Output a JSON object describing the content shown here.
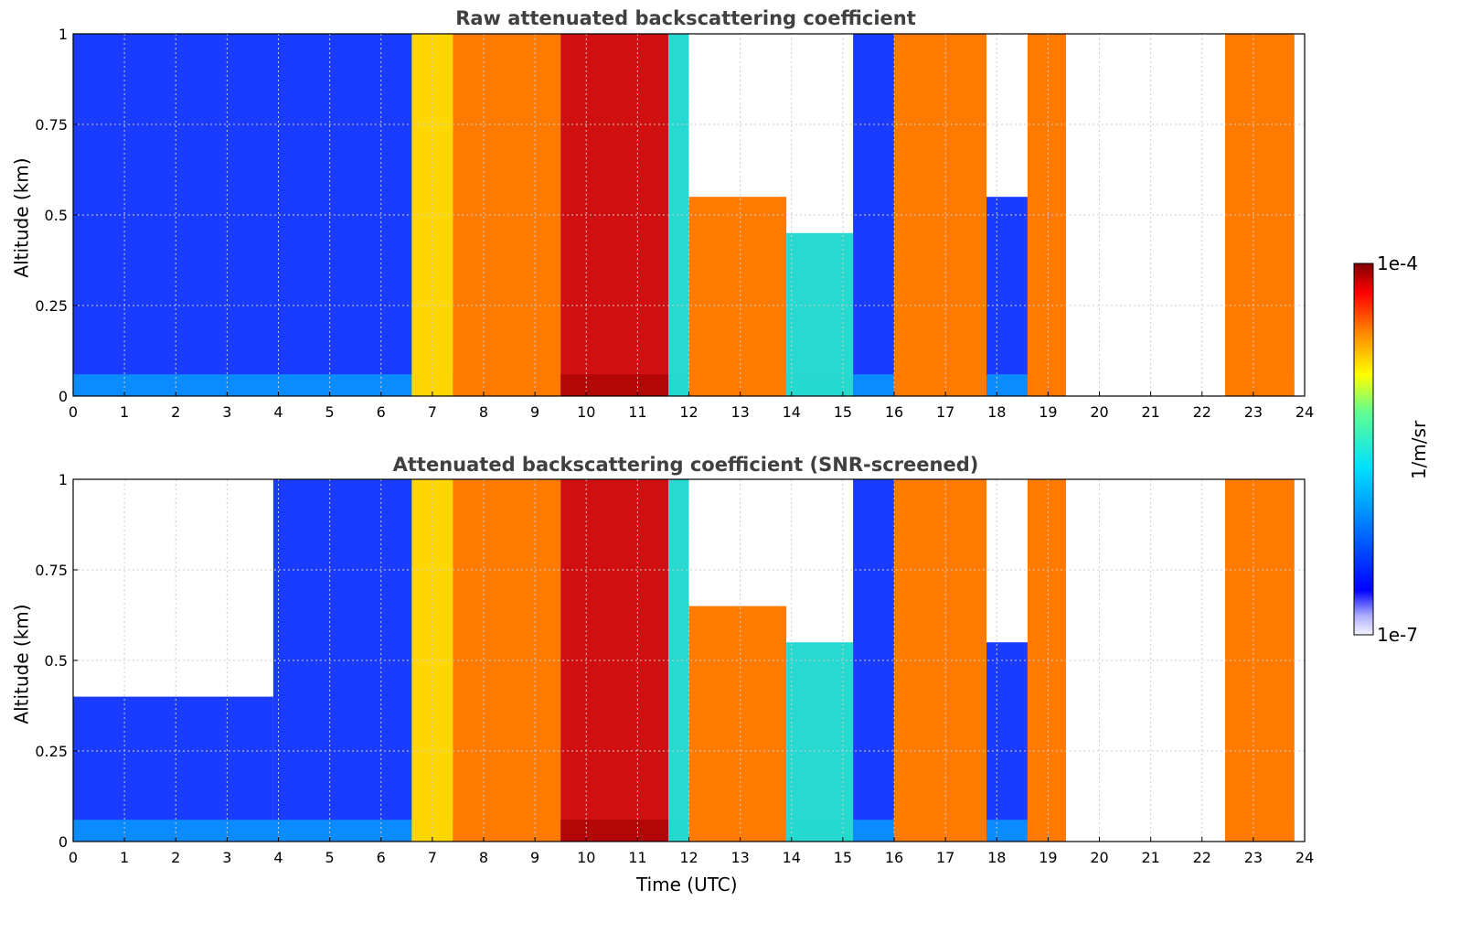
{
  "chart_data": [
    {
      "type": "heatmap",
      "title": "Raw attenuated backscattering coefficient",
      "xlabel": "",
      "ylabel": "Altitude (km)",
      "xlim": [
        0,
        24
      ],
      "ylim": [
        0,
        1
      ],
      "xticks": [
        "0",
        "1",
        "2",
        "3",
        "4",
        "5",
        "6",
        "7",
        "8",
        "9",
        "10",
        "11",
        "12",
        "13",
        "14",
        "15",
        "16",
        "17",
        "18",
        "19",
        "20",
        "21",
        "22",
        "23",
        "24"
      ],
      "yticks": [
        "0",
        "0.25",
        "0.5",
        "0.75",
        "1"
      ],
      "grid": true,
      "segments": [
        {
          "start": 0.0,
          "end": 6.6,
          "level": "low",
          "top_km": 1.0
        },
        {
          "start": 6.6,
          "end": 7.4,
          "level": "medium-high",
          "top_km": 1.0
        },
        {
          "start": 7.4,
          "end": 9.5,
          "level": "high",
          "top_km": 1.0
        },
        {
          "start": 9.5,
          "end": 11.6,
          "level": "very-high",
          "top_km": 1.0
        },
        {
          "start": 11.6,
          "end": 12.0,
          "level": "medium",
          "top_km": 1.0
        },
        {
          "start": 12.0,
          "end": 13.9,
          "level": "high",
          "top_km": 0.55
        },
        {
          "start": 13.9,
          "end": 15.2,
          "level": "medium",
          "top_km": 0.45
        },
        {
          "start": 15.2,
          "end": 16.0,
          "level": "low",
          "top_km": 1.0
        },
        {
          "start": 16.0,
          "end": 17.0,
          "level": "high",
          "top_km": 1.0
        },
        {
          "start": 17.0,
          "end": 17.8,
          "level": "high",
          "top_km": 1.0
        },
        {
          "start": 17.8,
          "end": 18.6,
          "level": "low",
          "top_km": 0.55
        },
        {
          "start": 18.6,
          "end": 19.35,
          "level": "high",
          "top_km": 1.0
        },
        {
          "start": 22.45,
          "end": 23.8,
          "level": "high",
          "top_km": 1.0
        }
      ]
    },
    {
      "type": "heatmap",
      "title": "Attenuated backscattering coefficient (SNR-screened)",
      "xlabel": "Time (UTC)",
      "ylabel": "Altitude (km)",
      "xlim": [
        0,
        24
      ],
      "ylim": [
        0,
        1
      ],
      "xticks": [
        "0",
        "1",
        "2",
        "3",
        "4",
        "5",
        "6",
        "7",
        "8",
        "9",
        "10",
        "11",
        "12",
        "13",
        "14",
        "15",
        "16",
        "17",
        "18",
        "19",
        "20",
        "21",
        "22",
        "23",
        "24"
      ],
      "yticks": [
        "0",
        "0.25",
        "0.5",
        "0.75",
        "1"
      ],
      "grid": true,
      "segments": [
        {
          "start": 0.0,
          "end": 3.9,
          "level": "low",
          "top_km": 0.4
        },
        {
          "start": 3.9,
          "end": 6.6,
          "level": "low",
          "top_km": 1.0
        },
        {
          "start": 6.6,
          "end": 7.4,
          "level": "medium-high",
          "top_km": 1.0
        },
        {
          "start": 7.4,
          "end": 9.5,
          "level": "high",
          "top_km": 1.0
        },
        {
          "start": 9.5,
          "end": 11.6,
          "level": "very-high",
          "top_km": 1.0
        },
        {
          "start": 11.6,
          "end": 12.0,
          "level": "medium",
          "top_km": 1.0
        },
        {
          "start": 12.0,
          "end": 13.9,
          "level": "high",
          "top_km": 0.65
        },
        {
          "start": 13.9,
          "end": 15.2,
          "level": "medium",
          "top_km": 0.55
        },
        {
          "start": 15.2,
          "end": 16.0,
          "level": "low",
          "top_km": 1.0
        },
        {
          "start": 16.0,
          "end": 17.0,
          "level": "high",
          "top_km": 1.0
        },
        {
          "start": 17.0,
          "end": 17.8,
          "level": "high",
          "top_km": 1.0
        },
        {
          "start": 17.8,
          "end": 18.6,
          "level": "low",
          "top_km": 0.55
        },
        {
          "start": 18.6,
          "end": 19.35,
          "level": "high",
          "top_km": 1.0
        },
        {
          "start": 22.45,
          "end": 23.8,
          "level": "high",
          "top_km": 1.0
        }
      ]
    }
  ],
  "colorbar": {
    "min_label": "1e-7",
    "max_label": "1e-4",
    "label": "1/m/sr",
    "colormap": "jet"
  },
  "colors": {
    "low": "#1a3cff",
    "medium": "#27d9d0",
    "medium-high": "#ffd700",
    "high": "#ff7a00",
    "very-high": "#d01010",
    "grid": "#cccccc"
  }
}
